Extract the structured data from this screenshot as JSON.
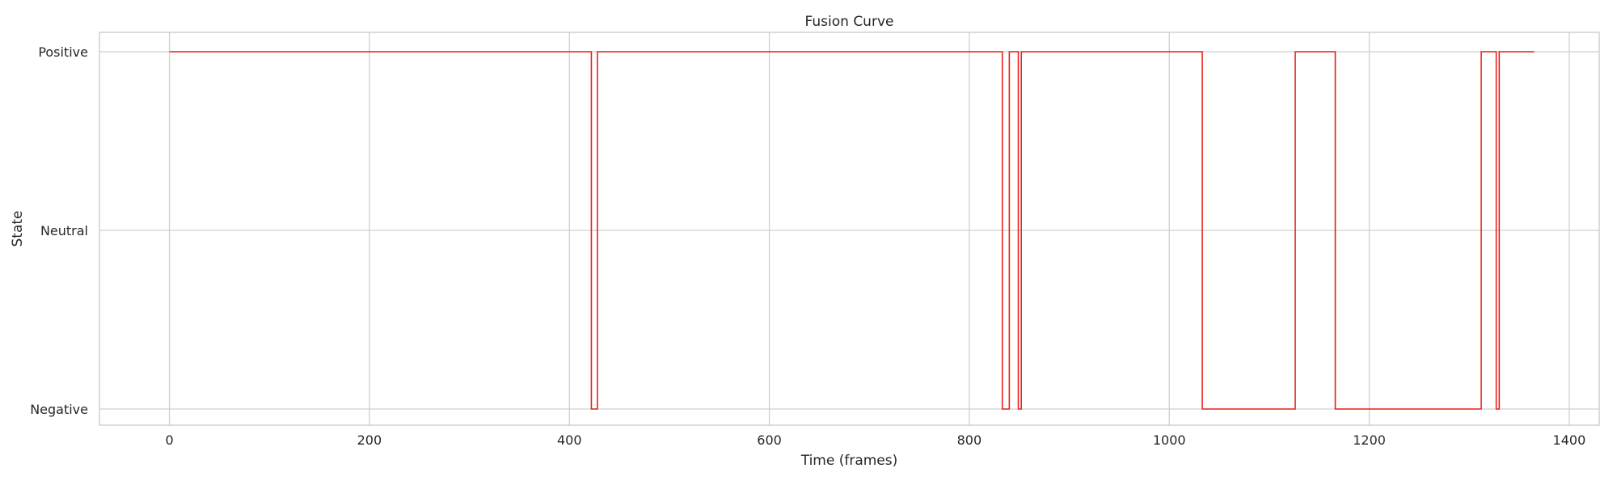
{
  "chart_data": {
    "type": "line",
    "title": "Fusion Curve",
    "xlabel": "Time (frames)",
    "ylabel": "State",
    "xlim": [
      -70,
      1430
    ],
    "x_ticks": [
      0,
      200,
      400,
      600,
      800,
      1000,
      1200,
      1400
    ],
    "y_categories": [
      "Negative",
      "Neutral",
      "Positive"
    ],
    "y_values": [
      -1,
      0,
      1
    ],
    "grid": true,
    "legend": "none",
    "series": [
      {
        "color": "#e8221b",
        "points": [
          [
            0,
            1
          ],
          [
            422,
            1
          ],
          [
            422,
            -1
          ],
          [
            428,
            -1
          ],
          [
            428,
            1
          ],
          [
            833,
            1
          ],
          [
            833,
            -1
          ],
          [
            840,
            -1
          ],
          [
            840,
            1
          ],
          [
            849,
            1
          ],
          [
            849,
            -1
          ],
          [
            852,
            -1
          ],
          [
            852,
            1
          ],
          [
            1033,
            1
          ],
          [
            1033,
            -1
          ],
          [
            1126,
            -1
          ],
          [
            1126,
            1
          ],
          [
            1166,
            1
          ],
          [
            1166,
            -1
          ],
          [
            1312,
            -1
          ],
          [
            1312,
            1
          ],
          [
            1327,
            1
          ],
          [
            1327,
            -1
          ],
          [
            1330,
            -1
          ],
          [
            1330,
            1
          ],
          [
            1365,
            1
          ]
        ]
      }
    ]
  }
}
